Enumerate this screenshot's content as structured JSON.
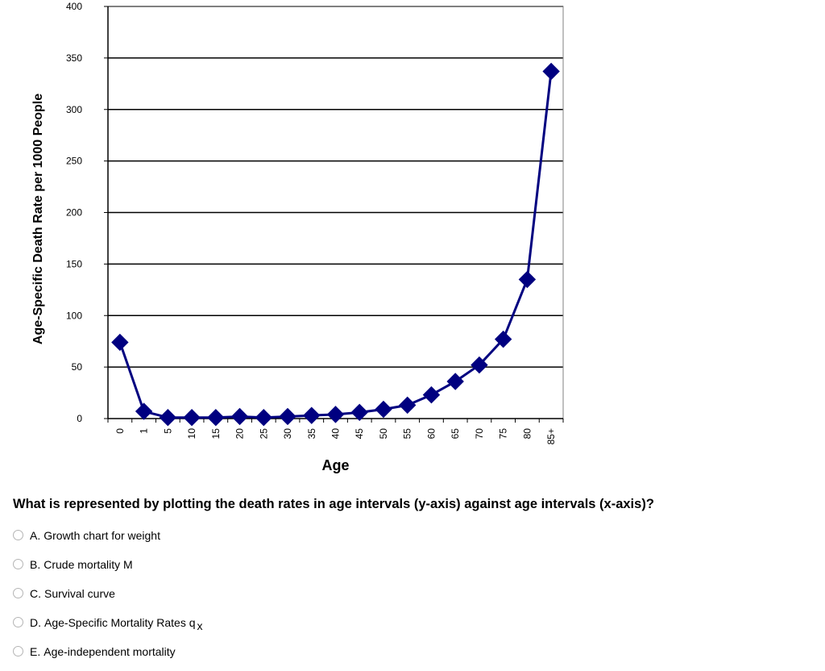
{
  "chart_data": {
    "type": "line",
    "title": "",
    "xlabel": "Age",
    "ylabel": "Age-Specific Death Rate per 1000 People",
    "ylim": [
      0,
      400
    ],
    "yticks": [
      0,
      50,
      100,
      150,
      200,
      250,
      300,
      350,
      400
    ],
    "grid": true,
    "legend": "none",
    "categories": [
      "0",
      "1",
      "5",
      "10",
      "15",
      "20",
      "25",
      "30",
      "35",
      "40",
      "45",
      "50",
      "55",
      "60",
      "65",
      "70",
      "75",
      "80",
      "85+"
    ],
    "series": [
      {
        "color": "#000080",
        "marker": "diamond",
        "values": [
          74,
          7,
          1,
          1,
          1,
          2,
          1,
          2,
          3,
          4,
          6,
          9,
          13,
          23,
          36,
          52,
          77,
          135,
          337
        ]
      }
    ]
  },
  "question": {
    "text": "What is represented by plotting the death rates in age intervals (y-axis) against age intervals (x-axis)?",
    "options": [
      {
        "letter": "A.",
        "text": "Growth chart for weight",
        "sub": ""
      },
      {
        "letter": "B.",
        "text": "Crude mortality M",
        "sub": ""
      },
      {
        "letter": "C.",
        "text": "Survival curve",
        "sub": ""
      },
      {
        "letter": "D.",
        "text": "Age-Specific Mortality Rates q",
        "sub": "x"
      },
      {
        "letter": "E.",
        "text": "Age-independent mortality",
        "sub": ""
      }
    ]
  }
}
